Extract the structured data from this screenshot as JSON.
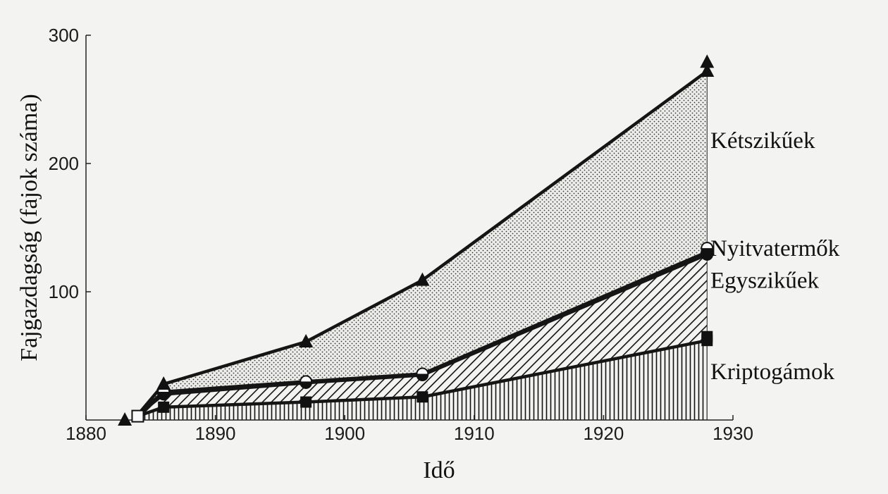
{
  "chart_data": {
    "type": "area",
    "stacked": true,
    "xlabel": "Idő",
    "ylabel": "Fajgazdagság (fajok száma)",
    "xlim": [
      1880,
      1930
    ],
    "ylim": [
      0,
      300
    ],
    "xticks": [
      1880,
      1890,
      1900,
      1910,
      1920,
      1930
    ],
    "yticks": [
      100,
      200,
      300
    ],
    "x": [
      1884,
      1886,
      1897,
      1906,
      1928
    ],
    "series": [
      {
        "name": "Kriptogámok",
        "values": [
          3,
          10,
          14,
          18,
          62
        ],
        "marker": "square-filled",
        "pattern": "vertical-lines",
        "color": "#111111"
      },
      {
        "name": "Egyszikűek",
        "values": [
          4,
          20,
          29,
          35,
          129
        ],
        "marker": "circle-filled",
        "pattern": "diagonal-lines",
        "color": "#111111"
      },
      {
        "name": "Nyitvatermők",
        "values": [
          4,
          22,
          30,
          36,
          131
        ],
        "marker": "circle-half",
        "pattern": "diagonal-lines",
        "color": "#111111"
      },
      {
        "name": "Kétszikűek",
        "values": [
          4,
          28,
          61,
          109,
          272
        ],
        "marker": "triangle-filled",
        "pattern": "dots",
        "color": "#111111"
      }
    ],
    "extra_markers": [
      {
        "series": "Kétszikűek",
        "x": 1883,
        "y": 0
      },
      {
        "series": "Kriptogámok",
        "x": 1928,
        "y": 65
      },
      {
        "series": "Egyszikűek",
        "x": 1928,
        "y": 130
      },
      {
        "series": "Nyitvatermők",
        "x": 1928,
        "y": 134
      },
      {
        "series": "Kétszikűek",
        "x": 1928,
        "y": 279
      }
    ],
    "series_labels": [
      {
        "text": "Kétszikűek",
        "value": 218
      },
      {
        "text": "Nyitvatermők",
        "value": 134
      },
      {
        "text": "Egyszikűek",
        "value": 109
      },
      {
        "text": "Kriptogámok",
        "value": 38
      }
    ],
    "grid": false
  }
}
